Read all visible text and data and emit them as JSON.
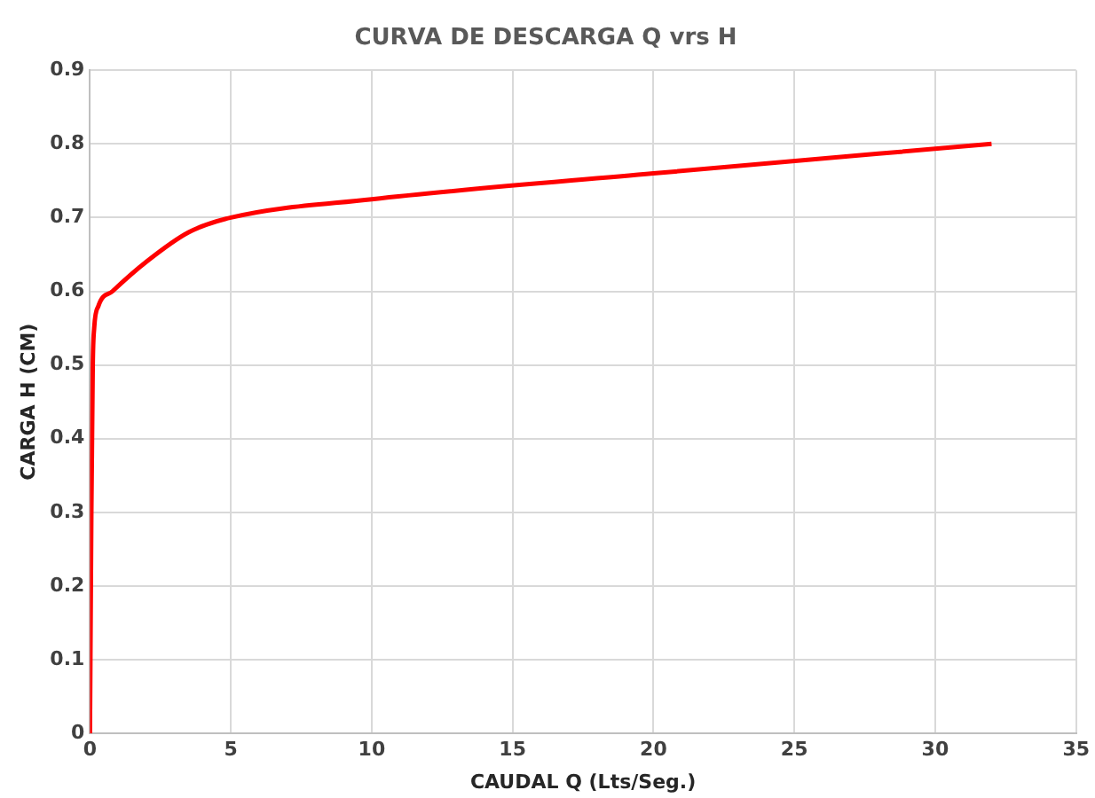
{
  "chart_data": {
    "type": "line",
    "title": "CURVA DE DESCARGA Q vrs H",
    "xlabel": "CAUDAL Q (Lts/Seg.)",
    "ylabel": "CARGA H (CM)",
    "x": [
      0,
      0.05,
      0.1,
      0.15,
      0.3,
      0.8,
      2,
      3.5,
      5,
      10,
      20,
      32
    ],
    "series": [
      {
        "color": "#ff0000",
        "values": [
          0,
          0.3,
          0.5,
          0.55,
          0.58,
          0.6,
          0.64,
          0.68,
          0.7,
          0.725,
          0.76,
          0.8
        ]
      }
    ],
    "xlim": [
      0,
      35
    ],
    "xticks": [
      0,
      5,
      10,
      15,
      20,
      25,
      30,
      35
    ],
    "ylim": [
      0,
      0.9
    ],
    "yticks": [
      0,
      0.1,
      0.2,
      0.3,
      0.4,
      0.5,
      0.6,
      0.7,
      0.8,
      0.9
    ],
    "grid": true,
    "legend": false,
    "marker": "none",
    "line_style": "solid"
  }
}
